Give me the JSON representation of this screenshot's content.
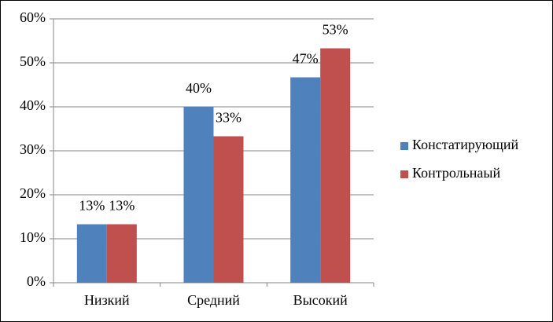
{
  "chart_data": {
    "type": "bar",
    "categories": [
      "Низкий",
      "Средний",
      "Высокий"
    ],
    "series": [
      {
        "name": "Констатирующий",
        "color": "#4f81bd",
        "values": [
          13.3,
          40,
          46.7
        ],
        "value_labels": [
          "13%",
          "40%",
          "47%"
        ]
      },
      {
        "name": "Контрольнаый",
        "color": "#c0504d",
        "values": [
          13.3,
          33.3,
          53.3
        ],
        "value_labels": [
          "13%",
          "33%",
          "53%"
        ]
      }
    ],
    "ylim": [
      0,
      60
    ],
    "yticks": [
      {
        "value": 0,
        "label": "0%"
      },
      {
        "value": 10,
        "label": "10%"
      },
      {
        "value": 20,
        "label": "20%"
      },
      {
        "value": 30,
        "label": "30%"
      },
      {
        "value": 40,
        "label": "40%"
      },
      {
        "value": 50,
        "label": "50%"
      },
      {
        "value": 60,
        "label": "60%"
      }
    ],
    "grid": true,
    "legend": "right"
  }
}
